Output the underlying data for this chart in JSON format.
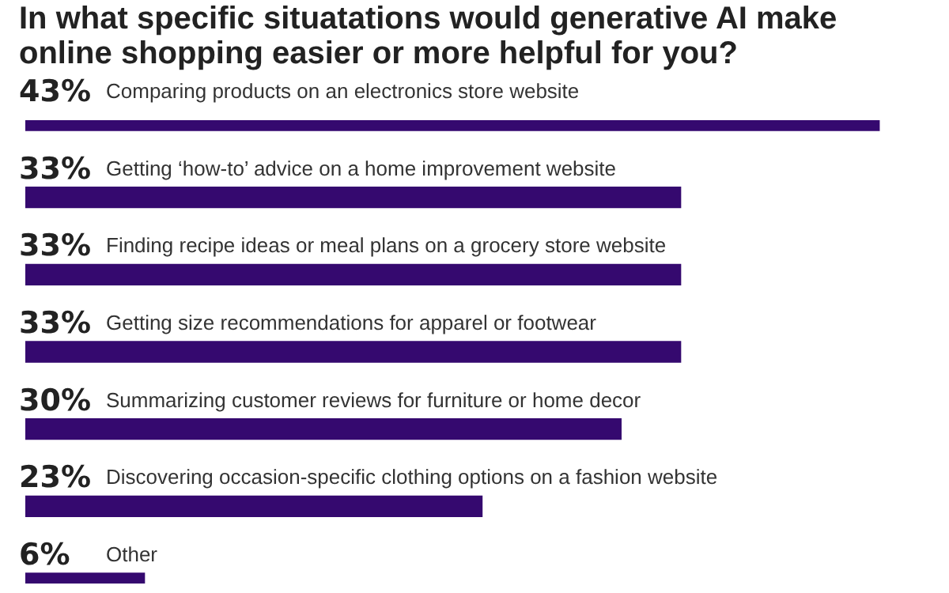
{
  "chart_data": {
    "type": "bar",
    "orientation": "horizontal",
    "title": "In what specific situatations would generative AI make online shopping easier or more helpful for you?",
    "categories": [
      "Comparing products on an electronics store website",
      "Getting ‘how-to’ advice on a home improvement website",
      "Finding recipe ideas or meal plans on a grocery store website",
      "Getting size recommendations for apparel or footwear",
      "Summarizing customer reviews for furniture or home decor",
      "Discovering occasion-specific clothing options on a fashion website",
      "Other"
    ],
    "values": [
      43,
      33,
      33,
      33,
      30,
      23,
      6
    ],
    "value_labels": [
      "43%",
      "33%",
      "33%",
      "33%",
      "30%",
      "23%",
      "6%"
    ],
    "color": "#35096f",
    "tick_labels": false,
    "legend": false
  }
}
